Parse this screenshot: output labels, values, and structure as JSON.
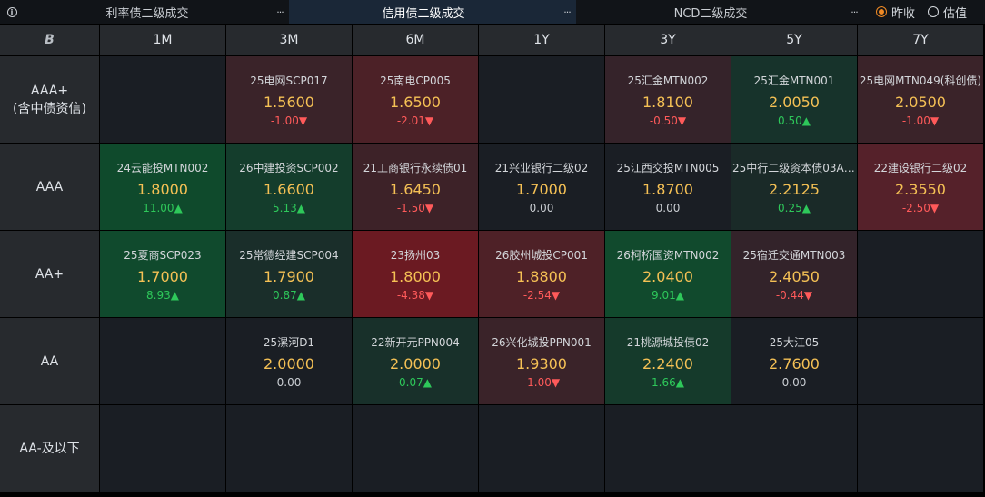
{
  "tabs": [
    {
      "label": "利率债二级成交",
      "more": "···",
      "active": false
    },
    {
      "label": "信用债二级成交",
      "more": "···",
      "active": true
    },
    {
      "label": "NCD二级成交",
      "more": "···",
      "active": false
    }
  ],
  "info_icon": "info-icon",
  "radio": [
    {
      "label": "昨收",
      "checked": true
    },
    {
      "label": "估值",
      "checked": false
    }
  ],
  "corner": "B",
  "columns": [
    "1M",
    "3M",
    "6M",
    "1Y",
    "3Y",
    "5Y",
    "7Y"
  ],
  "rows": [
    {
      "label": "AAA+\n(含中债资信)",
      "cells": [
        null,
        {
          "name": "25电网SCP017",
          "rate": "1.5600",
          "change": "-1.00",
          "dir": "down",
          "bg": "#3a2329"
        },
        {
          "name": "25南电CP005",
          "rate": "1.6500",
          "change": "-2.01",
          "dir": "down",
          "bg": "#4c2127"
        },
        null,
        {
          "name": "25汇金MTN002",
          "rate": "1.8100",
          "change": "-0.50",
          "dir": "down",
          "bg": "#35232a"
        },
        {
          "name": "25汇金MTN001",
          "rate": "2.0050",
          "change": "0.50",
          "dir": "up",
          "bg": "#17332b"
        },
        {
          "name": "25电网MTN049(科创债)",
          "rate": "2.0500",
          "change": "-1.00",
          "dir": "down",
          "bg": "#3a2329"
        }
      ]
    },
    {
      "label": "AAA",
      "cells": [
        {
          "name": "24云能投MTN002",
          "rate": "1.8000",
          "change": "11.00",
          "dir": "up",
          "bg": "#0f4a2c"
        },
        {
          "name": "26中建投资SCP002",
          "rate": "1.6600",
          "change": "5.13",
          "dir": "up",
          "bg": "#143d2c"
        },
        {
          "name": "21工商银行永续债01",
          "rate": "1.6450",
          "change": "-1.50",
          "dir": "down",
          "bg": "#3d2228"
        },
        {
          "name": "21兴业银行二级02",
          "rate": "1.7000",
          "change": "0.00",
          "dir": "flat",
          "bg": "#1a1e24"
        },
        {
          "name": "25江西交投MTN005",
          "rate": "1.8700",
          "change": "0.00",
          "dir": "flat",
          "bg": "#1a1e24"
        },
        {
          "name": "25中行二级资本债03A(...",
          "rate": "2.2125",
          "change": "0.25",
          "dir": "up",
          "bg": "#1a2a28"
        },
        {
          "name": "22建设银行二级02",
          "rate": "2.3550",
          "change": "-2.50",
          "dir": "down",
          "bg": "#55212a"
        }
      ]
    },
    {
      "label": "AA+",
      "cells": [
        {
          "name": "25夏商SCP023",
          "rate": "1.7000",
          "change": "8.93",
          "dir": "up",
          "bg": "#104a2d"
        },
        {
          "name": "25常德经建SCP004",
          "rate": "1.7900",
          "change": "0.87",
          "dir": "up",
          "bg": "#1a2e2a"
        },
        {
          "name": "23扬州03",
          "rate": "1.8000",
          "change": "-4.38",
          "dir": "down",
          "bg": "#6b1a22"
        },
        {
          "name": "26胶州城投CP001",
          "rate": "1.8800",
          "change": "-2.54",
          "dir": "down",
          "bg": "#4e2127"
        },
        {
          "name": "26柯桥国资MTN002",
          "rate": "2.0400",
          "change": "9.01",
          "dir": "up",
          "bg": "#114a2d"
        },
        {
          "name": "25宿迁交通MTN003",
          "rate": "2.4050",
          "change": "-0.44",
          "dir": "down",
          "bg": "#33232a"
        },
        null
      ]
    },
    {
      "label": "AA",
      "cells": [
        null,
        {
          "name": "25漯河D1",
          "rate": "2.0000",
          "change": "0.00",
          "dir": "flat",
          "bg": "#1a1e24"
        },
        {
          "name": "22新开元PPN004",
          "rate": "2.0000",
          "change": "0.07",
          "dir": "up",
          "bg": "#18302a"
        },
        {
          "name": "26兴化城投PPN001",
          "rate": "1.9300",
          "change": "-1.00",
          "dir": "down",
          "bg": "#3a2329"
        },
        {
          "name": "21桃源城投债02",
          "rate": "2.2400",
          "change": "1.66",
          "dir": "up",
          "bg": "#153a2b"
        },
        {
          "name": "25大江05",
          "rate": "2.7600",
          "change": "0.00",
          "dir": "flat",
          "bg": "#1a1e24"
        },
        null
      ]
    },
    {
      "label": "AA-及以下",
      "cells": [
        null,
        null,
        null,
        null,
        null,
        null,
        null
      ]
    }
  ],
  "arrows": {
    "up": "▲",
    "down": "▼",
    "flat": ""
  }
}
